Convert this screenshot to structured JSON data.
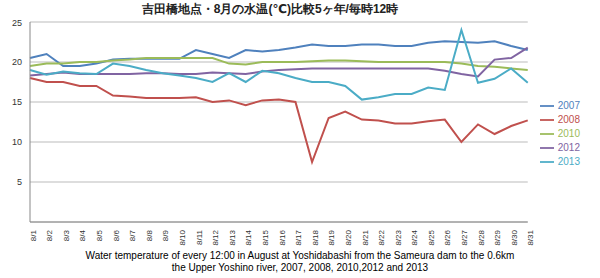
{
  "chart_data": {
    "type": "line",
    "title": "吉田橋地点・8月の水温(℃)比較5ヶ年/毎時12時",
    "caption": [
      "Water temperature of every 12:00 in August at Yoshidabashi from the Sameura dam to the 0.6km",
      "the Upper Yoshino river, 2007, 2008, 2010,2012 and 2013"
    ],
    "categories": [
      "8/1",
      "8/2",
      "8/3",
      "8/4",
      "8/5",
      "8/6",
      "8/7",
      "8/8",
      "8/9",
      "8/10",
      "8/11",
      "8/12",
      "8/13",
      "8/14",
      "8/15",
      "8/16",
      "8/17",
      "8/18",
      "8/19",
      "8/20",
      "8/21",
      "8/22",
      "8/23",
      "8/24",
      "8/25",
      "8/26",
      "8/27",
      "8/28",
      "8/29",
      "8/30",
      "8/31"
    ],
    "series": [
      {
        "name": "2007",
        "color": "#4f81bd",
        "values": [
          20.5,
          21,
          19.5,
          19.5,
          19.8,
          20.3,
          20.4,
          20.4,
          20.4,
          20.4,
          21.5,
          21,
          20.5,
          21.5,
          21.3,
          21.5,
          21.8,
          22.2,
          22,
          22,
          22.2,
          22.2,
          22,
          22,
          22.4,
          22.6,
          22.5,
          22.4,
          22.6,
          22,
          21.5
        ]
      },
      {
        "name": "2008",
        "color": "#c0504d",
        "values": [
          18,
          17.5,
          17.5,
          17,
          17,
          15.8,
          15.7,
          15.5,
          15.5,
          15.5,
          15.6,
          15,
          15.2,
          14.6,
          15.2,
          15.3,
          15,
          7.5,
          13,
          13.8,
          12.8,
          12.7,
          12.3,
          12.3,
          12.6,
          12.8,
          10,
          12.2,
          11,
          12,
          12.7
        ]
      },
      {
        "name": "2010",
        "color": "#9bbb59",
        "values": [
          19.5,
          19.8,
          19.8,
          20,
          20,
          20.2,
          20.3,
          20.5,
          20.5,
          20.5,
          20.5,
          20.5,
          19.8,
          19.7,
          20,
          20,
          20,
          20.1,
          20.2,
          20.2,
          20.1,
          20,
          20,
          20,
          20,
          20,
          19.8,
          19.5,
          19.4,
          19.2,
          19
        ]
      },
      {
        "name": "2012",
        "color": "#8064a2",
        "values": [
          18.3,
          18.5,
          18.7,
          18.5,
          18.5,
          18.5,
          18.5,
          18.6,
          18.6,
          18.5,
          18.5,
          18.7,
          18.6,
          18.5,
          18.8,
          19,
          19.1,
          19.2,
          19.2,
          19.2,
          19.2,
          19.2,
          19.2,
          19.2,
          19.2,
          18.9,
          18.5,
          18.2,
          20.3,
          20.5,
          21.8
        ]
      },
      {
        "name": "2013",
        "color": "#4bacc6",
        "values": [
          19,
          18.4,
          18.8,
          18.6,
          18.5,
          19.8,
          19.5,
          19,
          18.6,
          18.3,
          18,
          17.5,
          18.6,
          17.5,
          18.9,
          18.6,
          18,
          17.5,
          17.5,
          17,
          15.3,
          15.6,
          16,
          16,
          16.8,
          16.5,
          24,
          17.4,
          17.9,
          19.2,
          17.4
        ]
      }
    ],
    "ylim": [
      0,
      25
    ],
    "yticks": [
      5,
      10,
      15,
      20,
      25
    ],
    "grid": true,
    "legend": "right"
  }
}
